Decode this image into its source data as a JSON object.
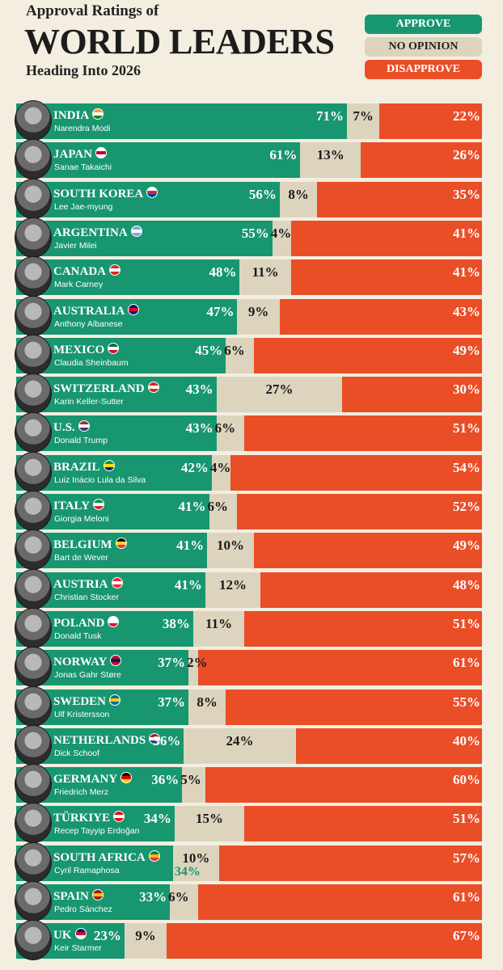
{
  "title": {
    "line1": "Approval Ratings of",
    "main": "WORLD LEADERS",
    "line3": "Heading Into 2026"
  },
  "legend": {
    "approve": "APPROVE",
    "no_opinion": "NO OPINION",
    "disapprove": "DISAPPROVE"
  },
  "colors": {
    "approve": "#18966f",
    "no_opinion": "#dcd4bd",
    "disapprove": "#ea4e27",
    "background": "#f3eee0"
  },
  "chart_data": {
    "type": "bar",
    "stacked": true,
    "orientation": "horizontal",
    "series_names": [
      "Approve",
      "No opinion",
      "Disapprove"
    ],
    "rows": [
      {
        "country": "INDIA",
        "leader": "Narendra Modi",
        "approve": 71,
        "no_opinion": 7,
        "disapprove": 22,
        "flag": [
          "#ff9933",
          "#ffffff",
          "#138808"
        ]
      },
      {
        "country": "JAPAN",
        "leader": "Sanae Takaichi",
        "approve": 61,
        "no_opinion": 13,
        "disapprove": 26,
        "flag": [
          "#ffffff",
          "#bc002d",
          "#ffffff"
        ]
      },
      {
        "country": "SOUTH KOREA",
        "leader": "Lee Jae-myung",
        "approve": 56,
        "no_opinion": 8,
        "disapprove": 35,
        "flag": [
          "#ffffff",
          "#cd2e3a",
          "#0047a0"
        ]
      },
      {
        "country": "ARGENTINA",
        "leader": "Javier Milei",
        "approve": 55,
        "no_opinion": 4,
        "disapprove": 41,
        "flag": [
          "#74acdf",
          "#ffffff",
          "#74acdf"
        ]
      },
      {
        "country": "CANADA",
        "leader": "Mark Carney",
        "approve": 48,
        "no_opinion": 11,
        "disapprove": 41,
        "flag": [
          "#d52b1e",
          "#ffffff",
          "#d52b1e"
        ]
      },
      {
        "country": "AUSTRALIA",
        "leader": "Anthony Albanese",
        "approve": 47,
        "no_opinion": 9,
        "disapprove": 43,
        "flag": [
          "#012169",
          "#e4002b",
          "#012169"
        ]
      },
      {
        "country": "MEXICO",
        "leader": "Claudia Sheinbaum",
        "approve": 45,
        "no_opinion": 6,
        "disapprove": 49,
        "flag": [
          "#006847",
          "#ffffff",
          "#ce1126"
        ]
      },
      {
        "country": "SWITZERLAND",
        "leader": "Karin Keller-Sutter",
        "approve": 43,
        "no_opinion": 27,
        "disapprove": 30,
        "flag": [
          "#d52b1e",
          "#ffffff",
          "#d52b1e"
        ]
      },
      {
        "country": "U.S.",
        "leader": "Donald Trump",
        "approve": 43,
        "no_opinion": 6,
        "disapprove": 51,
        "flag": [
          "#b22234",
          "#ffffff",
          "#3c3b6e"
        ]
      },
      {
        "country": "BRAZIL",
        "leader": "Luiz Inácio Lula da Silva",
        "approve": 42,
        "no_opinion": 4,
        "disapprove": 54,
        "flag": [
          "#009c3b",
          "#ffdf00",
          "#002776"
        ]
      },
      {
        "country": "ITALY",
        "leader": "Giorgia Meloni",
        "approve": 41,
        "no_opinion": 6,
        "disapprove": 52,
        "flag": [
          "#009246",
          "#ffffff",
          "#ce2b37"
        ]
      },
      {
        "country": "BELGIUM",
        "leader": "Bart de Wever",
        "approve": 41,
        "no_opinion": 10,
        "disapprove": 49,
        "flag": [
          "#000000",
          "#fdda24",
          "#ef3340"
        ]
      },
      {
        "country": "AUSTRIA",
        "leader": "Christian Stocker",
        "approve": 41,
        "no_opinion": 12,
        "disapprove": 48,
        "flag": [
          "#ed2939",
          "#ffffff",
          "#ed2939"
        ]
      },
      {
        "country": "POLAND",
        "leader": "Donald Tusk",
        "approve": 38,
        "no_opinion": 11,
        "disapprove": 51,
        "flag": [
          "#ffffff",
          "#ffffff",
          "#dc143c"
        ]
      },
      {
        "country": "NORWAY",
        "leader": "Jonas Gahr Støre",
        "approve": 37,
        "no_opinion": 2,
        "disapprove": 61,
        "flag": [
          "#ba0c2f",
          "#00205b",
          "#ba0c2f"
        ]
      },
      {
        "country": "SWEDEN",
        "leader": "Ulf Kristersson",
        "approve": 37,
        "no_opinion": 8,
        "disapprove": 55,
        "flag": [
          "#006aa7",
          "#fecc00",
          "#006aa7"
        ]
      },
      {
        "country": "NETHERLANDS",
        "leader": "Dick Schoof",
        "approve": 36,
        "no_opinion": 24,
        "disapprove": 40,
        "flag": [
          "#ae1c28",
          "#ffffff",
          "#21468b"
        ]
      },
      {
        "country": "GERMANY",
        "leader": "Friedrich Merz",
        "approve": 36,
        "no_opinion": 5,
        "disapprove": 60,
        "flag": [
          "#000000",
          "#dd0000",
          "#ffce00"
        ]
      },
      {
        "country": "TÜRKIYE",
        "leader": "Recep Tayyip Erdoğan",
        "approve": 34,
        "no_opinion": 15,
        "disapprove": 51,
        "flag": [
          "#e30a17",
          "#ffffff",
          "#e30a17"
        ]
      },
      {
        "country": "SOUTH AFRICA",
        "leader": "Cyril Ramaphosa",
        "approve": 34,
        "no_opinion": 10,
        "disapprove": 57,
        "flag": [
          "#007a4d",
          "#ffb612",
          "#de3831"
        ],
        "approve_below": true
      },
      {
        "country": "SPAIN",
        "leader": "Pedro Sánchez",
        "approve": 33,
        "no_opinion": 6,
        "disapprove": 61,
        "flag": [
          "#aa151b",
          "#f1bf00",
          "#aa151b"
        ]
      },
      {
        "country": "UK",
        "leader": "Keir Starmer",
        "approve": 23,
        "no_opinion": 9,
        "disapprove": 67,
        "flag": [
          "#012169",
          "#c8102e",
          "#ffffff"
        ]
      }
    ]
  }
}
